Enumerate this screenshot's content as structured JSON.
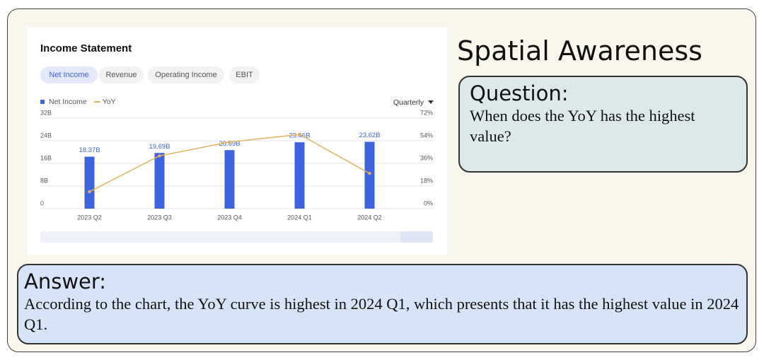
{
  "chart_data": {
    "type": "bar",
    "title": "Income Statement",
    "tabs": [
      "Net Income",
      "Revenue",
      "Operating Income",
      "EBIT"
    ],
    "period": "Quarterly",
    "categories": [
      "2023 Q2",
      "2023 Q3",
      "2023 Q4",
      "2024 Q1",
      "2024 Q2"
    ],
    "series": [
      {
        "name": "Net Income",
        "color": "#3d63dd",
        "values": [
          18.37,
          19.69,
          20.69,
          23.46,
          23.62
        ],
        "value_labels": [
          "18.37B",
          "19.69B",
          "20.69B",
          "23.46B",
          "23.62B"
        ]
      },
      {
        "name": "YoY",
        "type": "line",
        "axis": "y2",
        "color": "#e3b25f",
        "values": [
          13.5,
          42,
          53,
          59,
          28
        ]
      }
    ],
    "ylim": [
      0,
      32
    ],
    "yticks": [
      {
        "value": 0,
        "label": "0"
      },
      {
        "value": 8,
        "label": "8B"
      },
      {
        "value": 16,
        "label": "16B"
      },
      {
        "value": 24,
        "label": "24B"
      },
      {
        "value": 32,
        "label": "32B"
      }
    ],
    "y2lim": [
      0,
      72
    ],
    "y2ticks": [
      {
        "value": 0,
        "label": "0%"
      },
      {
        "value": 18,
        "label": "18%"
      },
      {
        "value": 36,
        "label": "36%"
      },
      {
        "value": 54,
        "label": "54%"
      },
      {
        "value": 72,
        "label": "72%"
      }
    ],
    "grid": true
  },
  "header": {
    "title": "Spatial Awareness"
  },
  "question": {
    "label": "Question:",
    "text": "When does the YoY has the highest value?"
  },
  "answer": {
    "label": "Answer:",
    "text": "According to the chart, the YoY curve is highest in 2024 Q1, which presents that it has the highest value in 2024 Q1."
  }
}
